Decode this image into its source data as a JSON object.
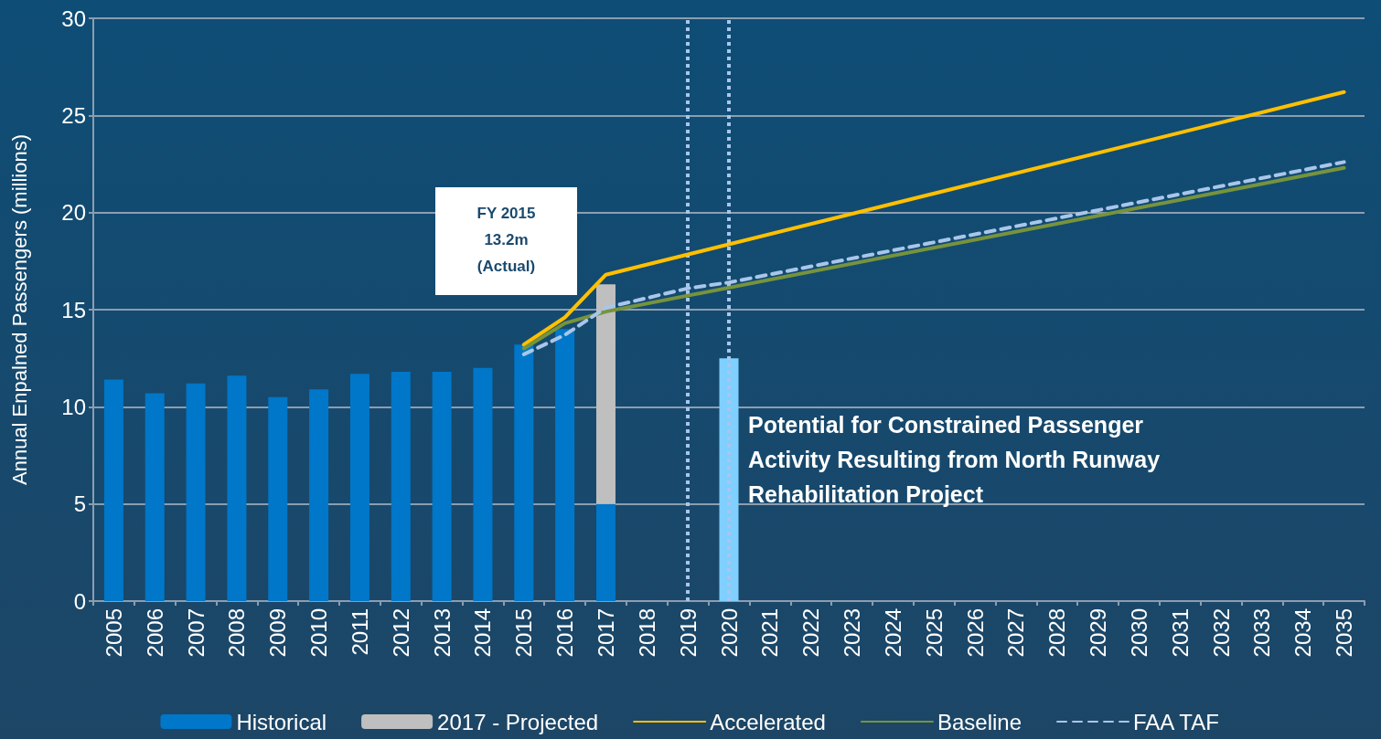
{
  "chart_data": {
    "type": "bar",
    "ylabel": "Annual Enpalned Passengers (millions)",
    "categories": [
      "2005",
      "2006",
      "2007",
      "2008",
      "2009",
      "2010",
      "2011",
      "2012",
      "2013",
      "2014",
      "2015",
      "2016",
      "2017",
      "2018",
      "2019",
      "2020",
      "2021",
      "2022",
      "2023",
      "2024",
      "2025",
      "2026",
      "2027",
      "2028",
      "2029",
      "2030",
      "2031",
      "2032",
      "2033",
      "2034",
      "2035"
    ],
    "stacked": true,
    "series": [
      {
        "name": "Historical",
        "color": "#0077c8",
        "values": [
          11.4,
          10.7,
          11.2,
          11.6,
          10.5,
          10.9,
          11.7,
          11.8,
          11.8,
          12.0,
          13.2,
          14.0,
          5.0,
          null,
          null,
          null,
          null,
          null,
          null,
          null,
          null,
          null,
          null,
          null,
          null,
          null,
          null,
          null,
          null,
          null,
          null
        ]
      },
      {
        "name": "2017 - Projected",
        "color": "#bfbfbf",
        "values": [
          null,
          null,
          null,
          null,
          null,
          null,
          null,
          null,
          null,
          null,
          null,
          null,
          11.3,
          null,
          null,
          null,
          null,
          null,
          null,
          null,
          null,
          null,
          null,
          null,
          null,
          null,
          null,
          null,
          null,
          null,
          null
        ]
      },
      {
        "color": "#7fcfff",
        "values": [
          null,
          null,
          null,
          null,
          null,
          null,
          null,
          null,
          null,
          null,
          null,
          null,
          null,
          null,
          null,
          12.5,
          null,
          null,
          null,
          null,
          null,
          null,
          null,
          null,
          null,
          null,
          null,
          null,
          null,
          null,
          null
        ]
      },
      {
        "name": "Accelerated",
        "type": "line",
        "color": "#ffc000",
        "line_style": "solid",
        "values": [
          null,
          null,
          null,
          null,
          null,
          null,
          null,
          null,
          null,
          null,
          13.2,
          14.6,
          16.8,
          null,
          null,
          null,
          null,
          null,
          null,
          null,
          null,
          null,
          null,
          null,
          null,
          null,
          null,
          null,
          null,
          null,
          26.2
        ]
      },
      {
        "name": "Baseline",
        "type": "line",
        "color": "#77933c",
        "line_style": "solid",
        "values": [
          null,
          null,
          null,
          null,
          null,
          null,
          null,
          null,
          null,
          null,
          13.0,
          14.3,
          14.9,
          null,
          null,
          null,
          null,
          null,
          null,
          null,
          null,
          null,
          null,
          null,
          null,
          null,
          null,
          null,
          null,
          null,
          22.3
        ]
      },
      {
        "name": "FAA TAF",
        "type": "line",
        "color": "#a9c6ea",
        "line_style": "dashed",
        "values": [
          null,
          null,
          null,
          null,
          null,
          null,
          null,
          null,
          null,
          null,
          12.7,
          13.7,
          15.1,
          null,
          16.1,
          16.4,
          null,
          null,
          null,
          null,
          null,
          null,
          null,
          null,
          null,
          null,
          null,
          null,
          null,
          null,
          22.6
        ]
      }
    ],
    "ylim": [
      0,
      30
    ],
    "yticks": [
      0,
      5,
      10,
      15,
      20,
      25,
      30
    ],
    "grid": "y",
    "legend": "bottom",
    "marker": "none",
    "ref_lines": [
      {
        "axis": "x",
        "value": "2019",
        "color": "#a9c6ea",
        "line_style": "dotted"
      },
      {
        "axis": "x",
        "value": "2020",
        "color": "#a9c6ea",
        "line_style": "dotted"
      }
    ],
    "annotations": [
      "FY 2015\n13.2m\n(Actual)",
      "Potential for Constrained Passenger\nActivity Resulting from North Runway\nRehabilitation Project"
    ]
  }
}
